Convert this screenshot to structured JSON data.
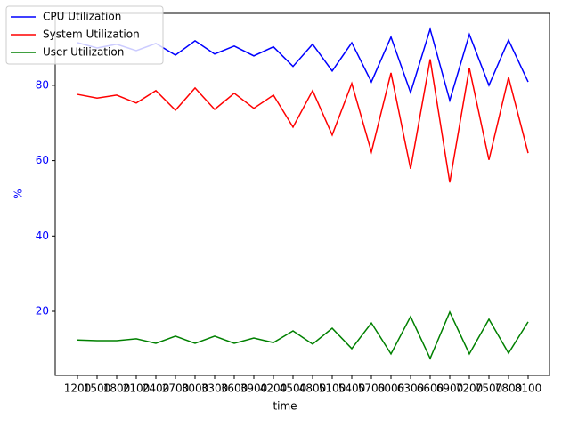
{
  "chart_data": {
    "type": "line",
    "x_label": "time",
    "y_label": "%",
    "categories": [
      "1200",
      "1500",
      "1800",
      "2100",
      "2400",
      "2700",
      "3000",
      "3300",
      "3600",
      "3900",
      "4200",
      "4500",
      "4800",
      "5100",
      "5400",
      "5700",
      "6000",
      "6300",
      "6600",
      "6900",
      "7200",
      "7500",
      "7800",
      "8100"
    ],
    "series": [
      {
        "name": "CPU Utilization",
        "color": "#0000ff",
        "values": [
          91.3,
          89.9,
          90.9,
          89.2,
          91.1,
          88.0,
          91.8,
          88.3,
          90.4,
          87.8,
          90.2,
          85.0,
          90.9,
          83.8,
          91.3,
          80.9,
          92.8,
          78.1,
          94.9,
          76.0,
          93.5,
          80.0,
          92.0,
          80.9
        ]
      },
      {
        "name": "System Utilization",
        "color": "#ff0000",
        "values": [
          77.6,
          76.6,
          77.4,
          75.3,
          78.6,
          73.4,
          79.3,
          73.6,
          77.9,
          73.9,
          77.4,
          68.9,
          78.6,
          66.8,
          80.5,
          62.3,
          83.3,
          57.8,
          86.9,
          54.2,
          84.6,
          60.2,
          82.1,
          62.0
        ]
      },
      {
        "name": "User Utilization",
        "color": "#008000",
        "values": [
          12.4,
          12.2,
          12.2,
          12.7,
          11.5,
          13.4,
          11.5,
          13.4,
          11.5,
          12.9,
          11.7,
          14.8,
          11.3,
          15.5,
          10.1,
          16.9,
          8.7,
          18.6,
          7.5,
          19.8,
          8.7,
          17.9,
          8.9,
          17.2
        ]
      }
    ],
    "ylim": [
      3,
      99.1
    ],
    "yticks": [
      20,
      40,
      60,
      80
    ],
    "ytick_color": "#0000ff",
    "legend": "upper left"
  }
}
